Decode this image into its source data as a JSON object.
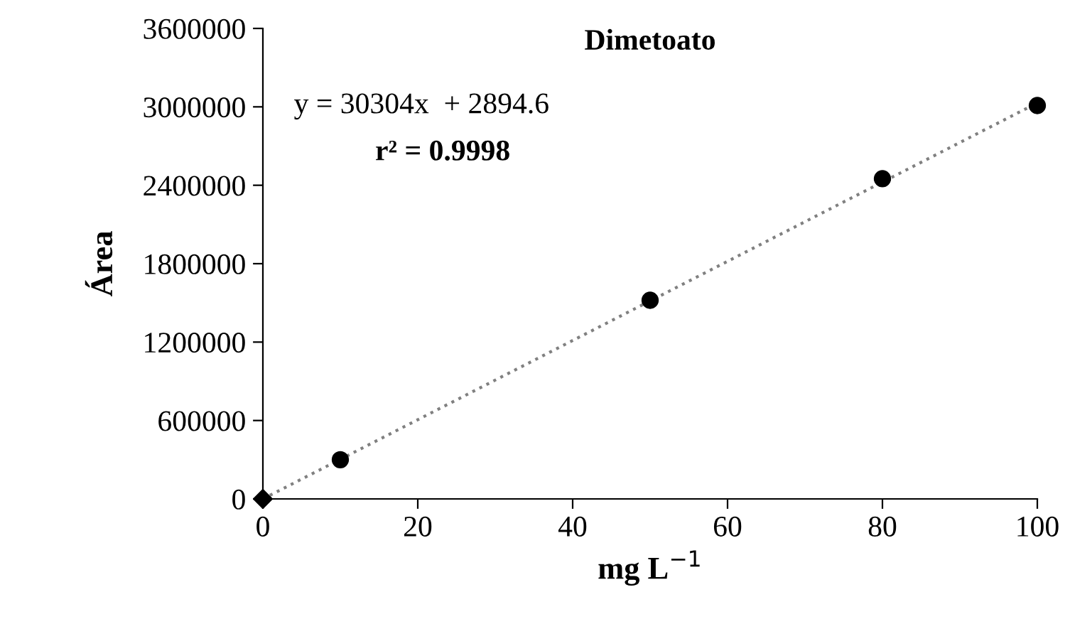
{
  "chart_data": {
    "type": "scatter",
    "title": "Dimetoato",
    "xlabel": "mg L$^{−1}$",
    "ylabel": "Área",
    "series": [
      {
        "color": "#000000",
        "marker": "diamond",
        "x": [
          0
        ],
        "values": [
          0
        ]
      },
      {
        "color": "#000000",
        "marker": "circle",
        "x": [
          10,
          50,
          80,
          100
        ],
        "values": [
          300000,
          1520000,
          2450000,
          3010000
        ]
      },
      {
        "type": "line",
        "color": "#808080",
        "line_style": "dotted",
        "marker": "none",
        "x": [
          0,
          100
        ],
        "values": [
          0,
          3030000
        ]
      }
    ],
    "annotations": [
      "y = 30304x  + 2894.6",
      "r² = 0.9998"
    ],
    "xlim": [
      0,
      100
    ],
    "xticks": [
      0,
      20,
      40,
      60,
      80,
      100
    ],
    "ylim": [
      0,
      3600000
    ],
    "yticks": [
      0,
      600000,
      1200000,
      1800000,
      2400000,
      3000000,
      3600000
    ],
    "grid": false,
    "legend": false
  }
}
